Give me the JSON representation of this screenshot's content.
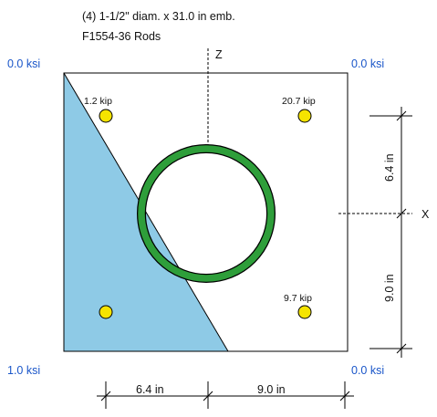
{
  "header": {
    "line1": "(4) 1-1/2\" diam. x 31.0 in emb.",
    "line2": "F1554-36 Rods"
  },
  "axes": {
    "z_label": "Z",
    "x_label": "X"
  },
  "pressures": {
    "top_left": "0.0 ksi",
    "top_right": "0.0 ksi",
    "bottom_left": "1.0 ksi",
    "bottom_right": "0.0 ksi"
  },
  "rods": [
    {
      "label": "1.2 kip"
    },
    {
      "label": "20.7 kip"
    },
    {
      "label": "9.7 kip"
    },
    {
      "label": ""
    }
  ],
  "dimensions": {
    "bottom_left": "6.4 in",
    "bottom_right": "9.0 in",
    "right_top": "6.4 in",
    "right_bottom": "9.0 in"
  },
  "colors": {
    "compression_zone": "#8ecae6",
    "column_ring": "#2e9e3a",
    "rod_fill": "#f5e400",
    "pressure_text": "#1a56c9"
  }
}
